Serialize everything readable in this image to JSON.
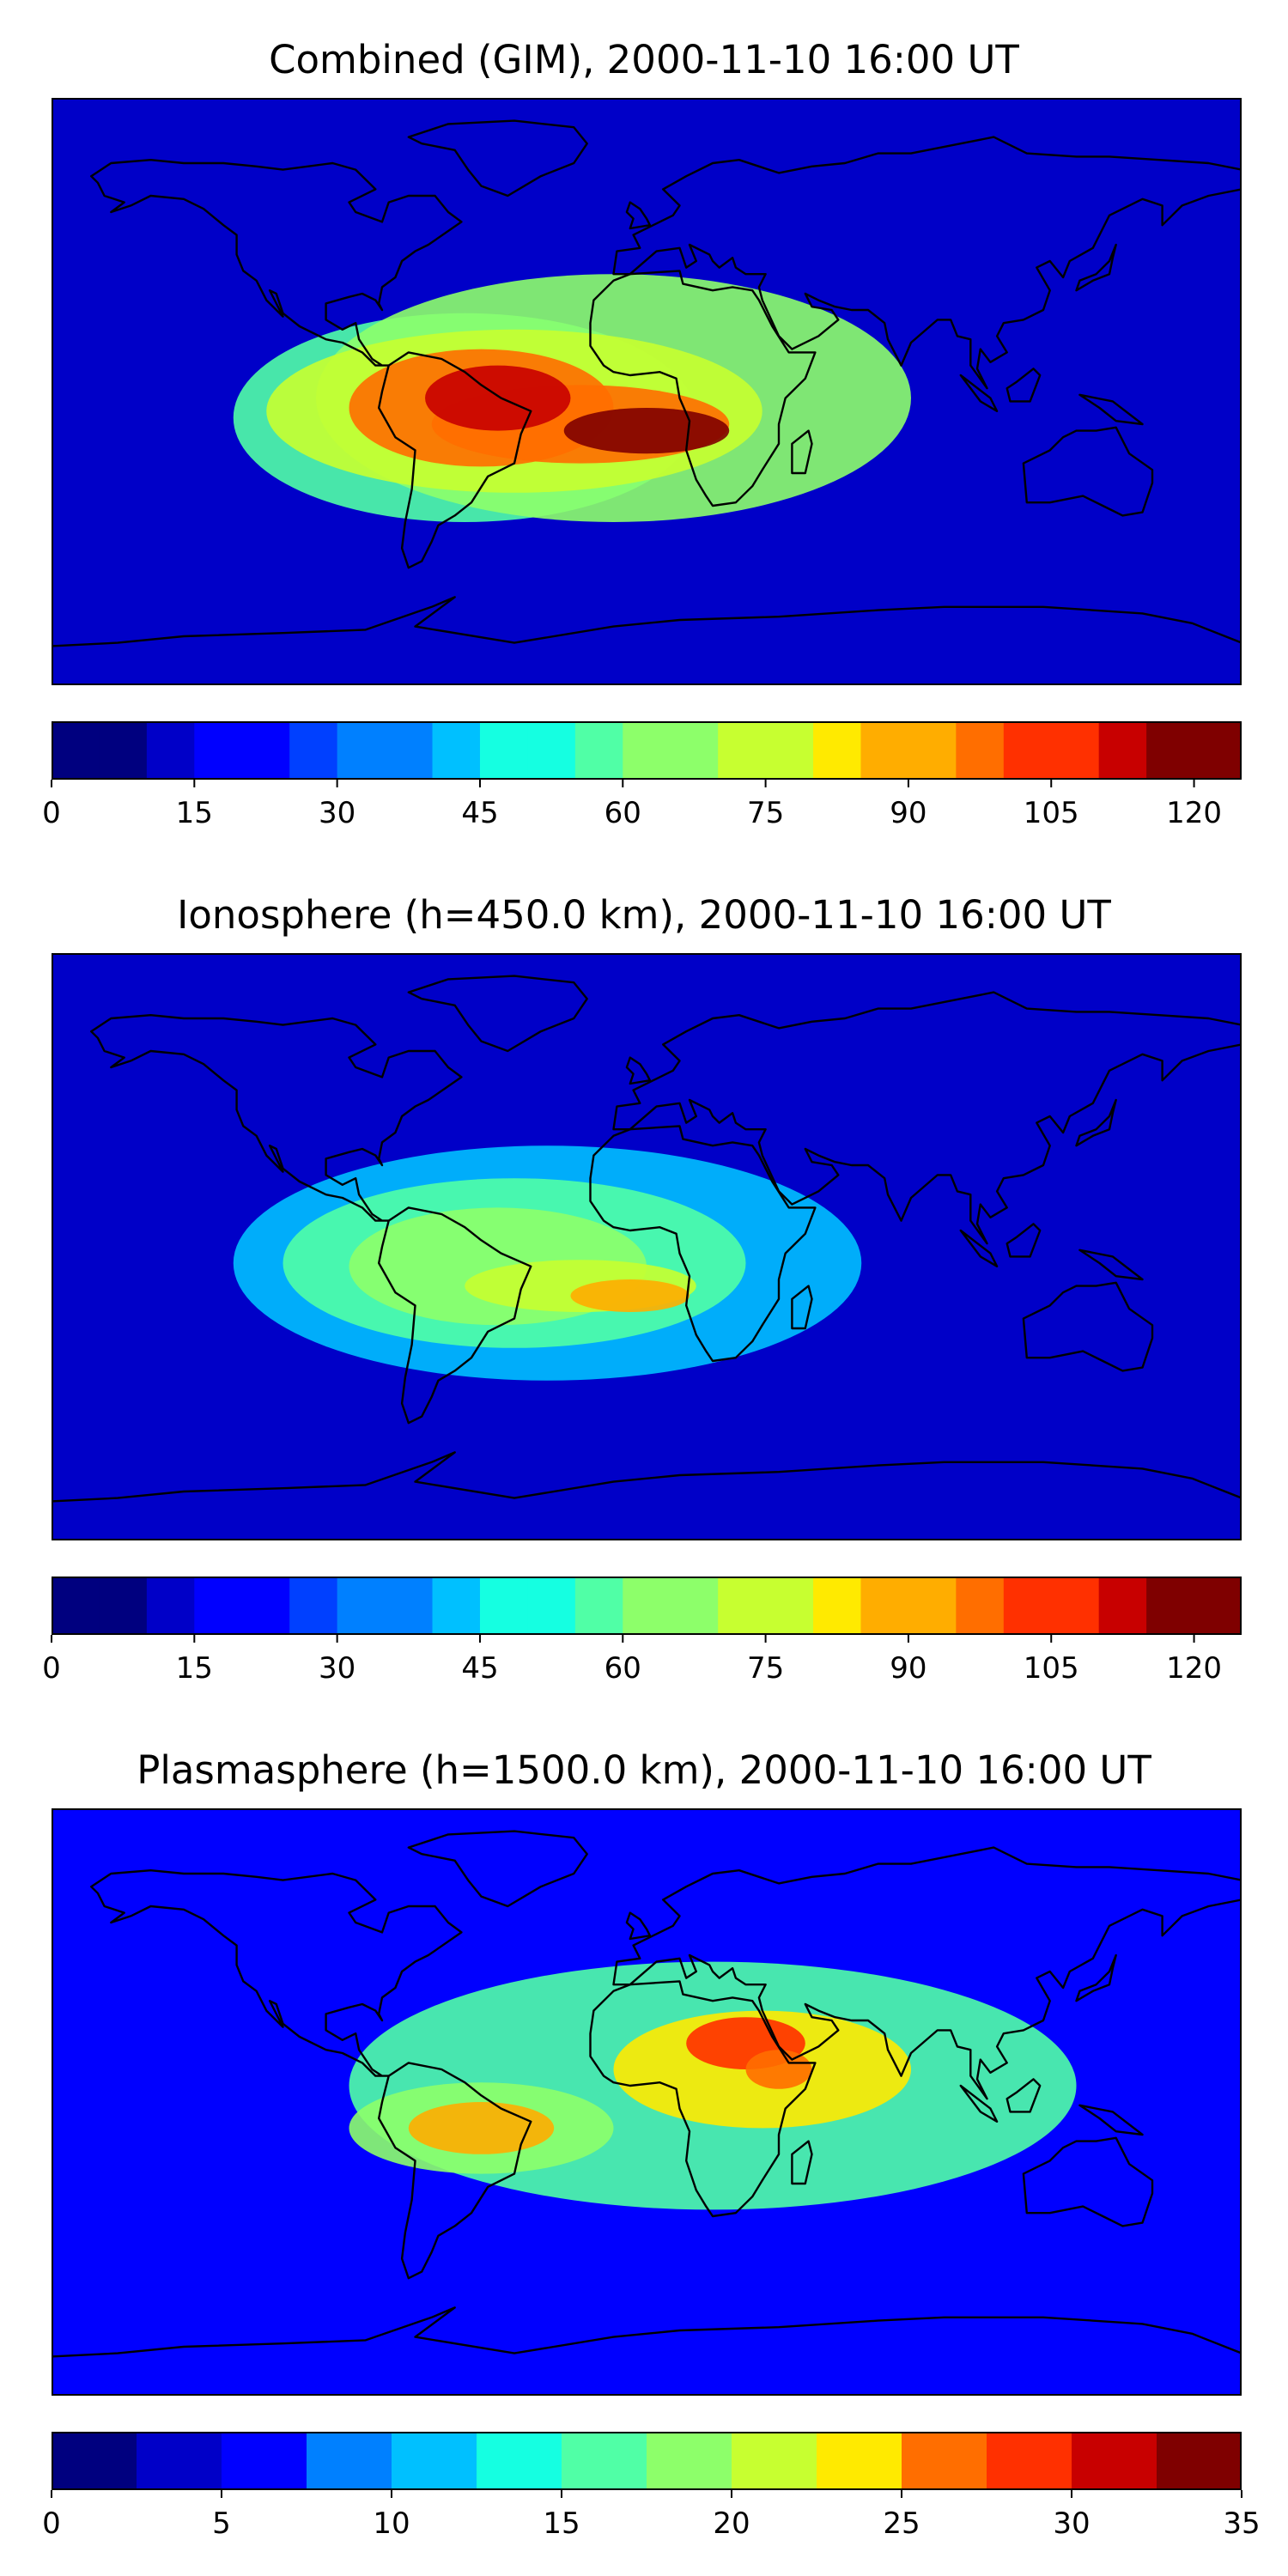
{
  "panels": [
    {
      "title": "Combined (GIM), 2000-11-10 16:00 UT",
      "colorbar": {
        "min": 0,
        "max": 125,
        "levels": 25,
        "tick_labels": [
          "0",
          "15",
          "30",
          "45",
          "60",
          "75",
          "90",
          "105",
          "120"
        ],
        "tick_values": [
          0,
          15,
          30,
          45,
          60,
          75,
          90,
          105,
          120
        ]
      },
      "blobs": [
        {
          "lon": -55,
          "lat": -5,
          "rx": 75,
          "ry": 30,
          "level": 0.35
        },
        {
          "lon": -50,
          "lat": -10,
          "rx": 50,
          "ry": 22,
          "level": 0.35
        },
        {
          "lon": -45,
          "lat": -10,
          "rx": 35,
          "ry": 14,
          "level": 0.35
        },
        {
          "lon": -30,
          "lat": -8,
          "rx": 70,
          "ry": 32,
          "level": 0.3
        },
        {
          "lon": -55,
          "lat": -5,
          "rx": 28,
          "ry": 15,
          "level": 0.3
        },
        {
          "lon": -40,
          "lat": -15,
          "rx": 45,
          "ry": 12,
          "level": 0.25
        },
        {
          "lon": 0,
          "lat": -13,
          "rx": 30,
          "ry": 9,
          "level": 0.2
        },
        {
          "lon": 5,
          "lat": 0,
          "rx": 80,
          "ry": 50,
          "level": 0.25
        }
      ],
      "base_level": 0.12
    },
    {
      "title": "Ionosphere  (h=450.0 km), 2000-11-10 16:00 UT",
      "colorbar": {
        "min": 0,
        "max": 125,
        "levels": 25,
        "tick_labels": [
          "0",
          "15",
          "30",
          "45",
          "60",
          "75",
          "90",
          "105",
          "120"
        ],
        "tick_values": [
          0,
          15,
          30,
          45,
          60,
          75,
          90,
          105,
          120
        ]
      },
      "base_level": 0.1
    },
    {
      "title": "Plasmasphere (h=1500.0 km), 2000-11-10 16:00 UT",
      "colorbar": {
        "min": 0,
        "max": 35,
        "levels": 14,
        "tick_labels": [
          "0",
          "5",
          "10",
          "15",
          "20",
          "25",
          "30",
          "35"
        ],
        "tick_values": [
          0,
          5,
          10,
          15,
          20,
          25,
          30,
          35
        ]
      },
      "base_level": 0.18
    }
  ],
  "colors": {
    "jet": [
      "#00007f",
      "#0000c8",
      "#0000ff",
      "#0040ff",
      "#0080ff",
      "#00c0ff",
      "#15ffe1",
      "#50ffa6",
      "#8dff6a",
      "#c7ff30",
      "#ffea00",
      "#ffad00",
      "#ff6e00",
      "#ff3000",
      "#c80000",
      "#7f0000"
    ],
    "coast": "#000000"
  }
}
